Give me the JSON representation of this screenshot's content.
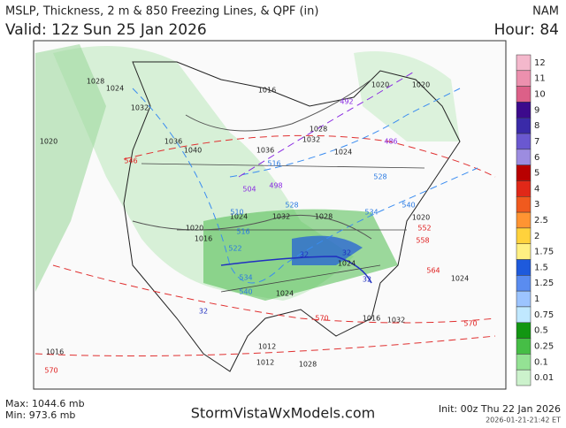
{
  "header": {
    "title": "MSLP, Thickness, 2 m & 850 Freezing Lines, & QPF (in)",
    "valid": "Valid: 12z Sun 25 Jan 2026",
    "model": "NAM",
    "hour": "Hour: 84"
  },
  "legend": [
    {
      "label": "12",
      "color": "#f4b8cc"
    },
    {
      "label": "11",
      "color": "#ec90ae"
    },
    {
      "label": "10",
      "color": "#dc6088"
    },
    {
      "label": "9",
      "color": "#3c0a8c"
    },
    {
      "label": "8",
      "color": "#3a2aa8"
    },
    {
      "label": "7",
      "color": "#6a58d0"
    },
    {
      "label": "6",
      "color": "#9c8ce0"
    },
    {
      "label": "5",
      "color": "#b80000"
    },
    {
      "label": "4",
      "color": "#e02818"
    },
    {
      "label": "3",
      "color": "#f05a1e"
    },
    {
      "label": "2.5",
      "color": "#ff9432"
    },
    {
      "label": "2",
      "color": "#ffd23c"
    },
    {
      "label": "1.75",
      "color": "#fff082"
    },
    {
      "label": "1.5",
      "color": "#1e5adc"
    },
    {
      "label": "1.25",
      "color": "#5a8cf0"
    },
    {
      "label": "1",
      "color": "#9cc4ff"
    },
    {
      "label": "0.75",
      "color": "#c0e8ff"
    },
    {
      "label": "0.5",
      "color": "#129612"
    },
    {
      "label": "0.25",
      "color": "#46be46"
    },
    {
      "label": "0.1",
      "color": "#94e294"
    },
    {
      "label": "0.01",
      "color": "#ccf2cc"
    }
  ],
  "contour_labels": [
    "1020",
    "1028",
    "1024",
    "1032",
    "1036",
    "1040",
    "1016",
    "1020",
    "1036",
    "1032",
    "1028",
    "1024",
    "1032",
    "1028",
    "1024",
    "1020",
    "1016",
    "1012",
    "1016",
    "1020",
    "1024",
    "1032",
    "1028",
    "1024",
    "1016",
    "1012",
    "1024",
    "1020",
    "546",
    "552",
    "558",
    "564",
    "570",
    "570",
    "570",
    "528",
    "522",
    "516",
    "510",
    "534",
    "540",
    "492",
    "486",
    "498",
    "504",
    "516",
    "528",
    "534",
    "540",
    "32",
    "32",
    "32",
    "32"
  ],
  "footer": {
    "max": "Max: 1044.6 mb",
    "min": "Min: 973.6 mb",
    "site": "StormVistaWxModels.com",
    "init": "Init: 00z Thu 22 Jan 2026",
    "stamp": "2026-01-21-21:42 ET"
  }
}
